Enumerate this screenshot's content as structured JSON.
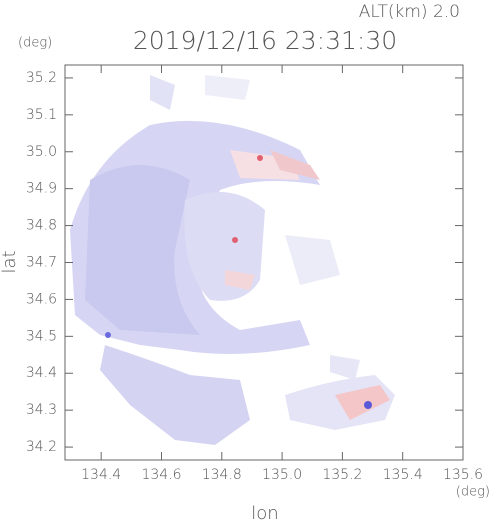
{
  "chart_data": {
    "type": "radar-image",
    "title": "2019/12/16 23:31:30",
    "altitude_label": "ALT(km) 2.0",
    "y_unit": "(deg)",
    "x_unit": "(deg)",
    "xlabel": "lon",
    "ylabel": "lat",
    "xlim": [
      134.28,
      135.6
    ],
    "xticks": [
      134.4,
      134.6,
      134.8,
      135.0,
      135.2,
      135.4,
      135.6
    ],
    "ylim": [
      34.165,
      35.235
    ],
    "yticks": [
      34.2,
      34.3,
      34.4,
      34.5,
      34.6,
      34.7,
      34.8,
      34.9,
      35.0,
      35.1,
      35.2
    ]
  }
}
